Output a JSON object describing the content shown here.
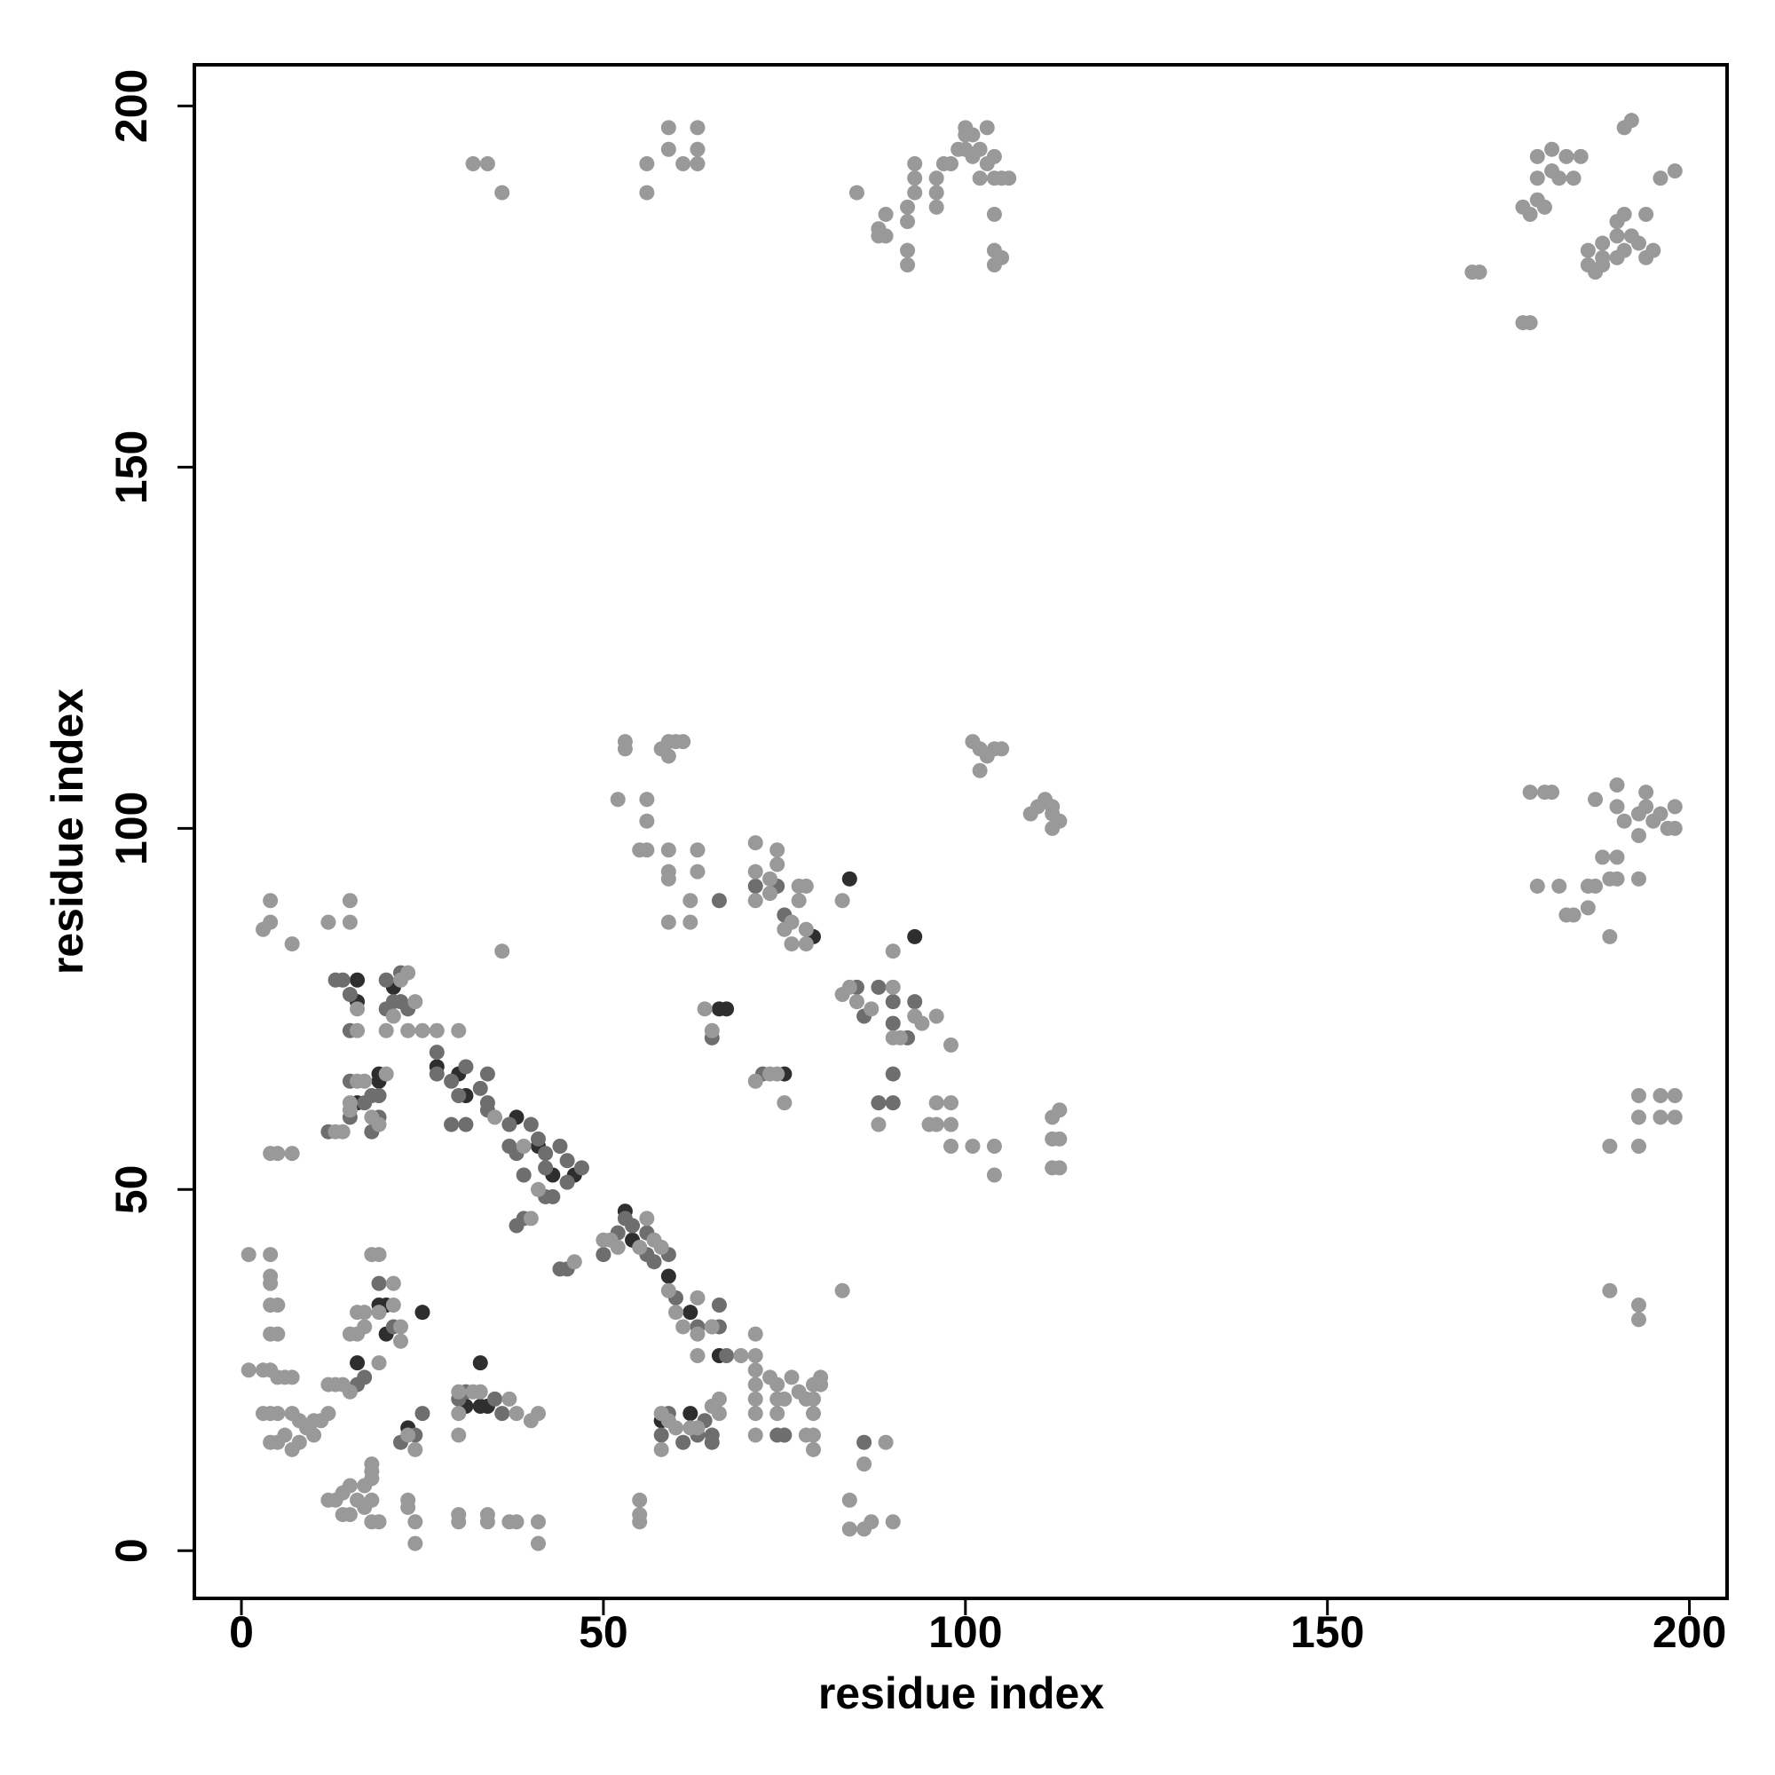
{
  "chart_data": {
    "type": "scatter",
    "x_label": "residue index",
    "y_label": "residue index",
    "xlim": [
      -6.5,
      205.2
    ],
    "ylim": [
      -6.6,
      205.7
    ],
    "xticks": [
      0,
      50,
      100,
      150,
      200
    ],
    "yticks": [
      0,
      50,
      100,
      150,
      200
    ],
    "grid": false,
    "series": [
      {
        "color": "#2e2e2e",
        "x": [
          66,
          67,
          84,
          75,
          16,
          16,
          21,
          27,
          30,
          31,
          38,
          41,
          43,
          46,
          53,
          54,
          59,
          62,
          16,
          19,
          19,
          16,
          19,
          20,
          20,
          25,
          23,
          31,
          33,
          33,
          34,
          58,
          62,
          93,
          79,
          66
        ],
        "values": [
          75,
          75,
          93,
          66,
          79,
          76,
          78,
          67,
          66,
          63,
          60,
          56,
          52,
          52,
          47,
          43,
          38,
          33,
          62,
          66,
          65,
          26,
          34,
          34,
          30,
          33,
          17,
          20,
          26,
          20,
          20,
          18,
          19,
          85,
          85,
          27
        ]
      },
      {
        "color": "#6e6e6e",
        "x": [
          13,
          14,
          15,
          15,
          20,
          22,
          21,
          22,
          20,
          23,
          27,
          27,
          31,
          29,
          34,
          30,
          33,
          34,
          34,
          37,
          37,
          38,
          39,
          40,
          41,
          42,
          42,
          44,
          45,
          45,
          47,
          42,
          43,
          38,
          39,
          44,
          45,
          50,
          52,
          53,
          54,
          56,
          56,
          57,
          59,
          60,
          63,
          65,
          66,
          66,
          67,
          74,
          75,
          15,
          15,
          17,
          18,
          19,
          19,
          16,
          17,
          19,
          21,
          22,
          24,
          25,
          30,
          31,
          35,
          36,
          58,
          59,
          61,
          63,
          64,
          65,
          65,
          86,
          88,
          90,
          90,
          85,
          86,
          88,
          90,
          90,
          92,
          93,
          74,
          75,
          71,
          72,
          66,
          65,
          29,
          31,
          12,
          18
        ],
        "values": [
          79,
          79,
          77,
          72,
          79,
          80,
          76,
          76,
          75,
          75,
          69,
          66,
          67,
          65,
          66,
          63,
          64,
          62,
          61,
          59,
          56,
          55,
          52,
          59,
          57,
          55,
          53,
          56,
          54,
          51,
          53,
          49,
          49,
          45,
          46,
          39,
          39,
          41,
          44,
          46,
          45,
          41,
          44,
          40,
          41,
          35,
          31,
          31,
          34,
          31,
          27,
          16,
          16,
          60,
          65,
          62,
          63,
          63,
          60,
          23,
          24,
          37,
          31,
          15,
          16,
          19,
          21,
          22,
          21,
          19,
          16,
          19,
          15,
          16,
          18,
          16,
          15,
          15,
          62,
          62,
          66,
          78,
          74,
          78,
          76,
          73,
          71,
          76,
          92,
          88,
          92,
          66,
          90,
          71,
          59,
          59,
          58,
          58
        ]
      },
      {
        "color": "#999999",
        "x": [
          32,
          34,
          36,
          56,
          56,
          59,
          59,
          61,
          63,
          63,
          63,
          85,
          88,
          88,
          89,
          89,
          92,
          92,
          92,
          92,
          93,
          93,
          93,
          96,
          96,
          96,
          97,
          98,
          99,
          100,
          100,
          100,
          101,
          101,
          102,
          102,
          103,
          103,
          104,
          104,
          104,
          104,
          105,
          105,
          106,
          104,
          170,
          171,
          177,
          178,
          177,
          178,
          179,
          179,
          179,
          180,
          181,
          181,
          182,
          183,
          184,
          185,
          186,
          186,
          187,
          188,
          188,
          188,
          190,
          190,
          191,
          190,
          191,
          192,
          193,
          194,
          194,
          195,
          191,
          192,
          196,
          198,
          52,
          53,
          53,
          56,
          56,
          56,
          55,
          58,
          59,
          59,
          60,
          61,
          59,
          59,
          59,
          59,
          62,
          62,
          63,
          63,
          64,
          65,
          71,
          71,
          71,
          73,
          73,
          74,
          74,
          75,
          76,
          76,
          77,
          77,
          78,
          78,
          78,
          83,
          83,
          84,
          85,
          87,
          90,
          90,
          91,
          93,
          94,
          96,
          98,
          90,
          88,
          95,
          96,
          96,
          98,
          98,
          98,
          101,
          104,
          104,
          112,
          113,
          112,
          113,
          112,
          113,
          71,
          73,
          74,
          75,
          101,
          102,
          103,
          102,
          104,
          105,
          109,
          110,
          111,
          112,
          112,
          113,
          112,
          178,
          180,
          181,
          179,
          182,
          183,
          184,
          186,
          186,
          187,
          187,
          188,
          189,
          190,
          190,
          189,
          190,
          190,
          191,
          193,
          193,
          193,
          194,
          195,
          196,
          197,
          198,
          198,
          194,
          193,
          193,
          196,
          196,
          198,
          198,
          189,
          193,
          189,
          193,
          193,
          3,
          4,
          4,
          7,
          12,
          15,
          15,
          36,
          83,
          16,
          16,
          23,
          22,
          24,
          21,
          20,
          23,
          25,
          27,
          30,
          35,
          39,
          41,
          40,
          46,
          50,
          51,
          52,
          55,
          56,
          57,
          58,
          59,
          60,
          61,
          63,
          63,
          63,
          65,
          69,
          71,
          71,
          71,
          71,
          71,
          71,
          71,
          73,
          74,
          74,
          74,
          75,
          76,
          77,
          78,
          78,
          79,
          79,
          79,
          79,
          79,
          80,
          80,
          86,
          89,
          13,
          14,
          15,
          15,
          16,
          17,
          18,
          20,
          19,
          4,
          5,
          7,
          1,
          4,
          4,
          4,
          4,
          5,
          4,
          5,
          1,
          3,
          4,
          5,
          6,
          7,
          3,
          4,
          5,
          4,
          5,
          6,
          7,
          7,
          8,
          8,
          9,
          10,
          10,
          11,
          12,
          12,
          13,
          14,
          15,
          18,
          19,
          19,
          19,
          15,
          16,
          16,
          17,
          17,
          21,
          21,
          22,
          22,
          12,
          13,
          14,
          15,
          14,
          15,
          16,
          17,
          17,
          18,
          18,
          18,
          18,
          18,
          19,
          23,
          24,
          23,
          23,
          24,
          24,
          30,
          30,
          30,
          32,
          33,
          37,
          38,
          40,
          41,
          30,
          30,
          34,
          34,
          37,
          38,
          41,
          41,
          55,
          55,
          55,
          58,
          58,
          59,
          60,
          62,
          63,
          65,
          66,
          66,
          84,
          84,
          86,
          87,
          90
        ],
        "values": [
          192,
          192,
          188,
          192,
          188,
          194,
          197,
          192,
          197,
          194,
          192,
          188,
          182,
          183,
          185,
          182,
          186,
          184,
          180,
          178,
          188,
          190,
          192,
          190,
          188,
          186,
          192,
          192,
          194,
          196,
          194,
          197,
          196,
          193,
          190,
          194,
          197,
          192,
          193,
          190,
          180,
          178,
          179,
          190,
          190,
          185,
          177,
          177,
          170,
          170,
          186,
          185,
          187,
          190,
          193,
          186,
          194,
          191,
          190,
          193,
          190,
          193,
          178,
          180,
          177,
          178,
          179,
          181,
          182,
          184,
          185,
          179,
          180,
          182,
          181,
          185,
          179,
          180,
          197,
          198,
          190,
          191,
          104,
          112,
          111,
          104,
          101,
          97,
          97,
          111,
          112,
          110,
          112,
          112,
          97,
          94,
          93,
          87,
          90,
          87,
          97,
          94,
          75,
          72,
          98,
          94,
          90,
          93,
          91,
          97,
          95,
          86,
          87,
          84,
          92,
          90,
          92,
          86,
          84,
          90,
          77,
          78,
          76,
          75,
          78,
          71,
          71,
          74,
          73,
          74,
          70,
          83,
          59,
          59,
          62,
          59,
          62,
          59,
          56,
          56,
          56,
          52,
          60,
          61,
          57,
          57,
          53,
          53,
          65,
          66,
          66,
          62,
          112,
          111,
          110,
          108,
          111,
          111,
          102,
          103,
          104,
          103,
          102,
          101,
          100,
          105,
          105,
          105,
          92,
          92,
          88,
          88,
          89,
          92,
          92,
          104,
          96,
          93,
          93,
          96,
          85,
          106,
          103,
          101,
          93,
          99,
          102,
          103,
          101,
          102,
          100,
          103,
          100,
          105,
          63,
          60,
          63,
          60,
          63,
          60,
          56,
          56,
          36,
          34,
          32,
          86,
          90,
          87,
          84,
          87,
          90,
          87,
          83,
          36,
          75,
          72,
          80,
          79,
          76,
          74,
          72,
          72,
          72,
          72,
          72,
          60,
          56,
          50,
          46,
          40,
          43,
          43,
          42,
          42,
          46,
          43,
          42,
          36,
          33,
          31,
          35,
          30,
          27,
          31,
          27,
          30,
          27,
          25,
          23,
          21,
          19,
          16,
          24,
          23,
          21,
          19,
          21,
          24,
          22,
          21,
          16,
          23,
          21,
          19,
          16,
          14,
          24,
          23,
          12,
          15,
          58,
          58,
          61,
          62,
          65,
          65,
          60,
          66,
          59,
          55,
          55,
          55,
          41,
          41,
          38,
          37,
          34,
          34,
          30,
          30,
          25,
          25,
          25,
          24,
          24,
          24,
          19,
          19,
          19,
          15,
          15,
          16,
          14,
          19,
          15,
          18,
          17,
          16,
          18,
          18,
          19,
          23,
          23,
          23,
          22,
          41,
          41,
          33,
          26,
          30,
          30,
          33,
          33,
          31,
          37,
          34,
          29,
          31,
          7,
          7,
          8,
          9,
          5,
          5,
          7,
          6,
          9,
          11,
          10,
          12,
          7,
          4,
          4,
          16,
          14,
          7,
          6,
          4,
          1,
          22,
          19,
          16,
          22,
          22,
          21,
          19,
          18,
          19,
          5,
          4,
          5,
          4,
          4,
          4,
          4,
          1,
          7,
          5,
          4,
          19,
          14,
          18,
          17,
          17,
          17,
          20,
          19,
          21,
          7,
          3,
          3,
          4,
          4
        ]
      }
    ]
  }
}
